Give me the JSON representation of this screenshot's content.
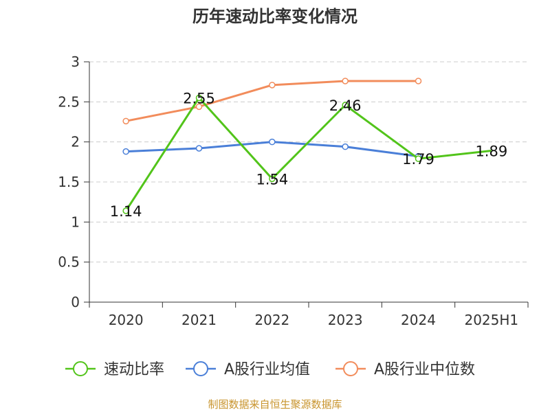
{
  "chart_data": {
    "type": "line",
    "title": "历年速动比率变化情况",
    "categories": [
      "2020",
      "2021",
      "2022",
      "2023",
      "2024",
      "2025H1"
    ],
    "ylim": [
      0,
      3
    ],
    "yticks": [
      "0",
      "0.5",
      "1",
      "1.5",
      "2",
      "2.5",
      "3"
    ],
    "ytick_values": [
      0,
      0.5,
      1,
      1.5,
      2,
      2.5,
      3
    ],
    "grid": true,
    "legend_position": "bottom",
    "series": [
      {
        "name": "速动比率",
        "color": "#52c41a",
        "values": [
          1.14,
          2.55,
          1.54,
          2.46,
          1.79,
          1.89
        ],
        "labels": [
          "1.14",
          "2.55",
          "1.54",
          "2.46",
          "1.79",
          "1.89"
        ],
        "show_labels": true,
        "markers": [
          true,
          true,
          true,
          true,
          true,
          false
        ]
      },
      {
        "name": "A股行业均值",
        "color": "#4a7fd8",
        "values": [
          1.88,
          1.92,
          2.0,
          1.94,
          1.82,
          null
        ],
        "show_labels": false
      },
      {
        "name": "A股行业中位数",
        "color": "#f28c5b",
        "values": [
          2.26,
          2.44,
          2.71,
          2.76,
          2.76,
          null
        ],
        "show_labels": false
      }
    ],
    "source": "制图数据来自恒生聚源数据库"
  }
}
